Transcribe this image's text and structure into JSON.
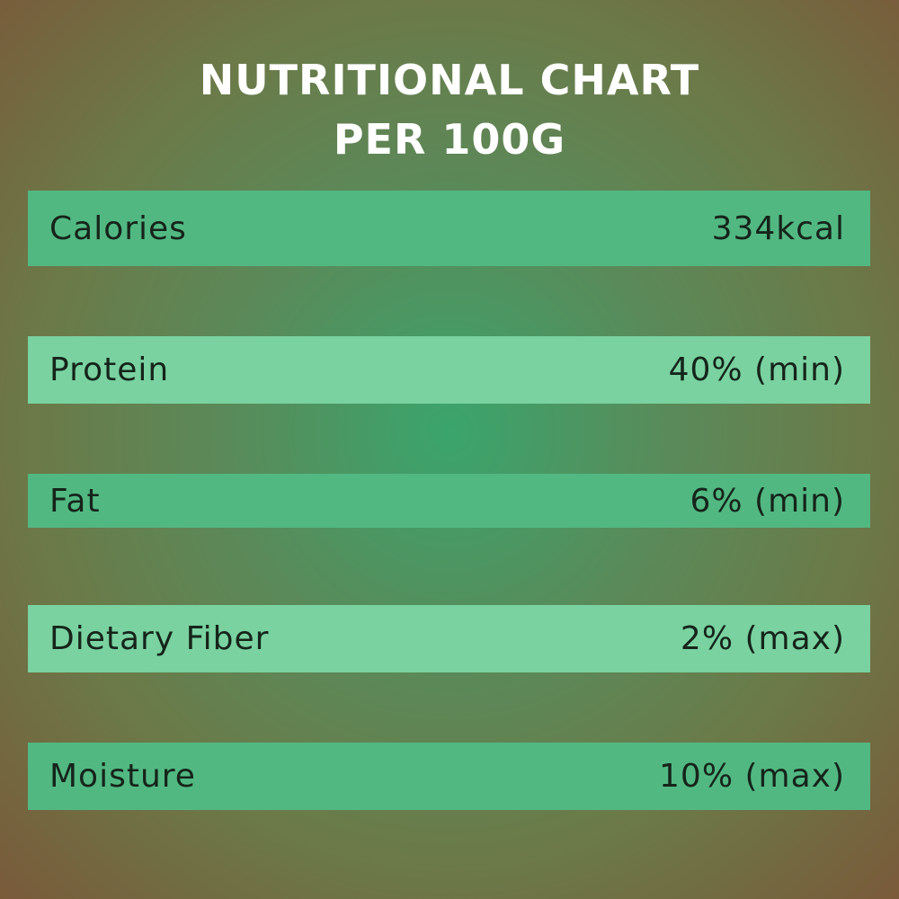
{
  "header": {
    "title_line1": "NUTRITIONAL CHART",
    "title_line2": "PER 100G"
  },
  "table": {
    "rows": [
      [
        "Calories",
        "334kcal"
      ],
      [
        "Protein",
        "40% (min)"
      ],
      [
        "Fat",
        "6% (min)"
      ],
      [
        "Dietary Fiber",
        "2% (max)"
      ],
      [
        "Moisture",
        "10% (max)"
      ]
    ]
  }
}
